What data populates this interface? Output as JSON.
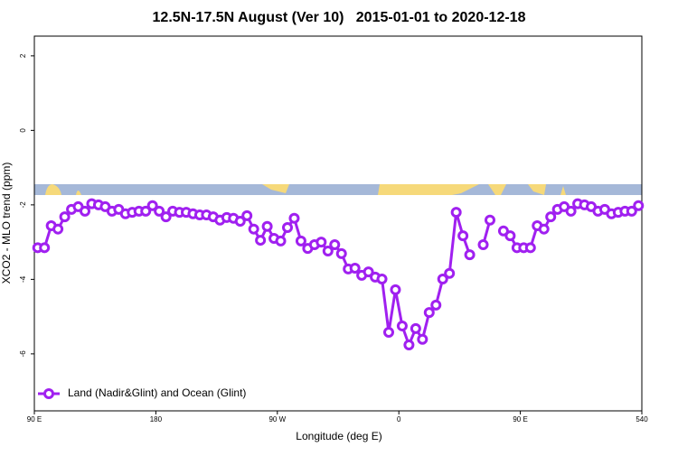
{
  "chart_data": {
    "type": "line",
    "title": "12.5N-17.5N August (Ver 10)   2015-01-01 to 2020-12-18",
    "x_label": "Longitude (deg E)",
    "y_label": "XCO2 - MLO trend (ppm)",
    "xlim": [
      90,
      540
    ],
    "xticks": [
      {
        "value": 90,
        "label": "90 E"
      },
      180,
      {
        "value": 270,
        "label": "90 W"
      },
      {
        "value": 360,
        "label": "0"
      },
      {
        "value": 450,
        "label": "90 E"
      },
      540
    ],
    "ylim": [
      -7.53,
      2.53
    ],
    "yticks": [
      2,
      0,
      -2,
      -4,
      -6
    ],
    "legend": "bottom-left",
    "x": [
      92.5,
      97.5,
      102.5,
      107.5,
      112.5,
      117.5,
      122.5,
      127.5,
      132.5,
      137.5,
      142.5,
      147.5,
      152.5,
      157.5,
      162.5,
      167.5,
      172.5,
      177.5,
      182.5,
      187.5,
      192.5,
      197.5,
      202.5,
      207.5,
      212.5,
      217.5,
      222.5,
      227.5,
      232.5,
      237.5,
      242.5,
      247.5,
      252.5,
      257.5,
      262.5,
      267.5,
      272.5,
      277.5,
      282.5,
      287.5,
      292.5,
      297.5,
      302.5,
      307.5,
      312.5,
      317.5,
      322.5,
      327.5,
      332.5,
      337.5,
      342.5,
      347.5,
      352.5,
      357.5,
      362.5,
      367.5,
      372.5,
      377.5,
      382.5,
      387.5,
      392.5,
      397.5,
      402.5,
      407.5,
      412.5,
      417.5,
      422.5,
      427.5,
      432.5,
      437.5,
      442.5,
      447.5,
      452.5,
      457.5,
      462.5,
      467.5,
      472.5,
      477.5,
      482.5,
      487.5,
      492.5,
      497.5,
      502.5,
      507.5,
      512.5,
      517.5,
      522.5,
      527.5,
      532.5,
      537.5
    ],
    "series": [
      {
        "name": "Land (Nadir&Glint) and Ocean (Glint)",
        "color": "#a020f0",
        "values": [
          -3.15,
          -3.15,
          -2.56,
          -2.65,
          -2.32,
          -2.12,
          -2.05,
          -2.17,
          -1.97,
          -2.0,
          -2.05,
          -2.17,
          -2.12,
          -2.24,
          -2.2,
          -2.17,
          -2.17,
          -2.02,
          -2.17,
          -2.32,
          -2.17,
          -2.2,
          -2.2,
          -2.24,
          -2.27,
          -2.27,
          -2.32,
          -2.41,
          -2.34,
          -2.36,
          -2.44,
          -2.29,
          -2.65,
          -2.95,
          -2.58,
          -2.9,
          -2.97,
          -2.61,
          -2.36,
          -2.97,
          -3.17,
          -3.07,
          -3.0,
          -3.24,
          -3.07,
          -3.31,
          -3.72,
          -3.7,
          -3.89,
          -3.8,
          -3.94,
          -3.99,
          -5.42,
          -4.28,
          -5.25,
          -5.76,
          -5.32,
          -5.61,
          -4.89,
          -4.69,
          -3.99,
          -3.84,
          -2.2,
          -2.83,
          -3.34,
          null,
          -3.07,
          -2.41,
          null,
          -2.7,
          -2.83,
          -3.15,
          -3.15,
          -3.15,
          -2.56,
          -2.65,
          -2.32,
          -2.12,
          -2.05,
          -2.17,
          -1.97,
          -2.0,
          -2.05,
          -2.17,
          -2.12,
          -2.24,
          -2.2,
          -2.17,
          -2.17,
          -2.02
        ]
      }
    ]
  }
}
